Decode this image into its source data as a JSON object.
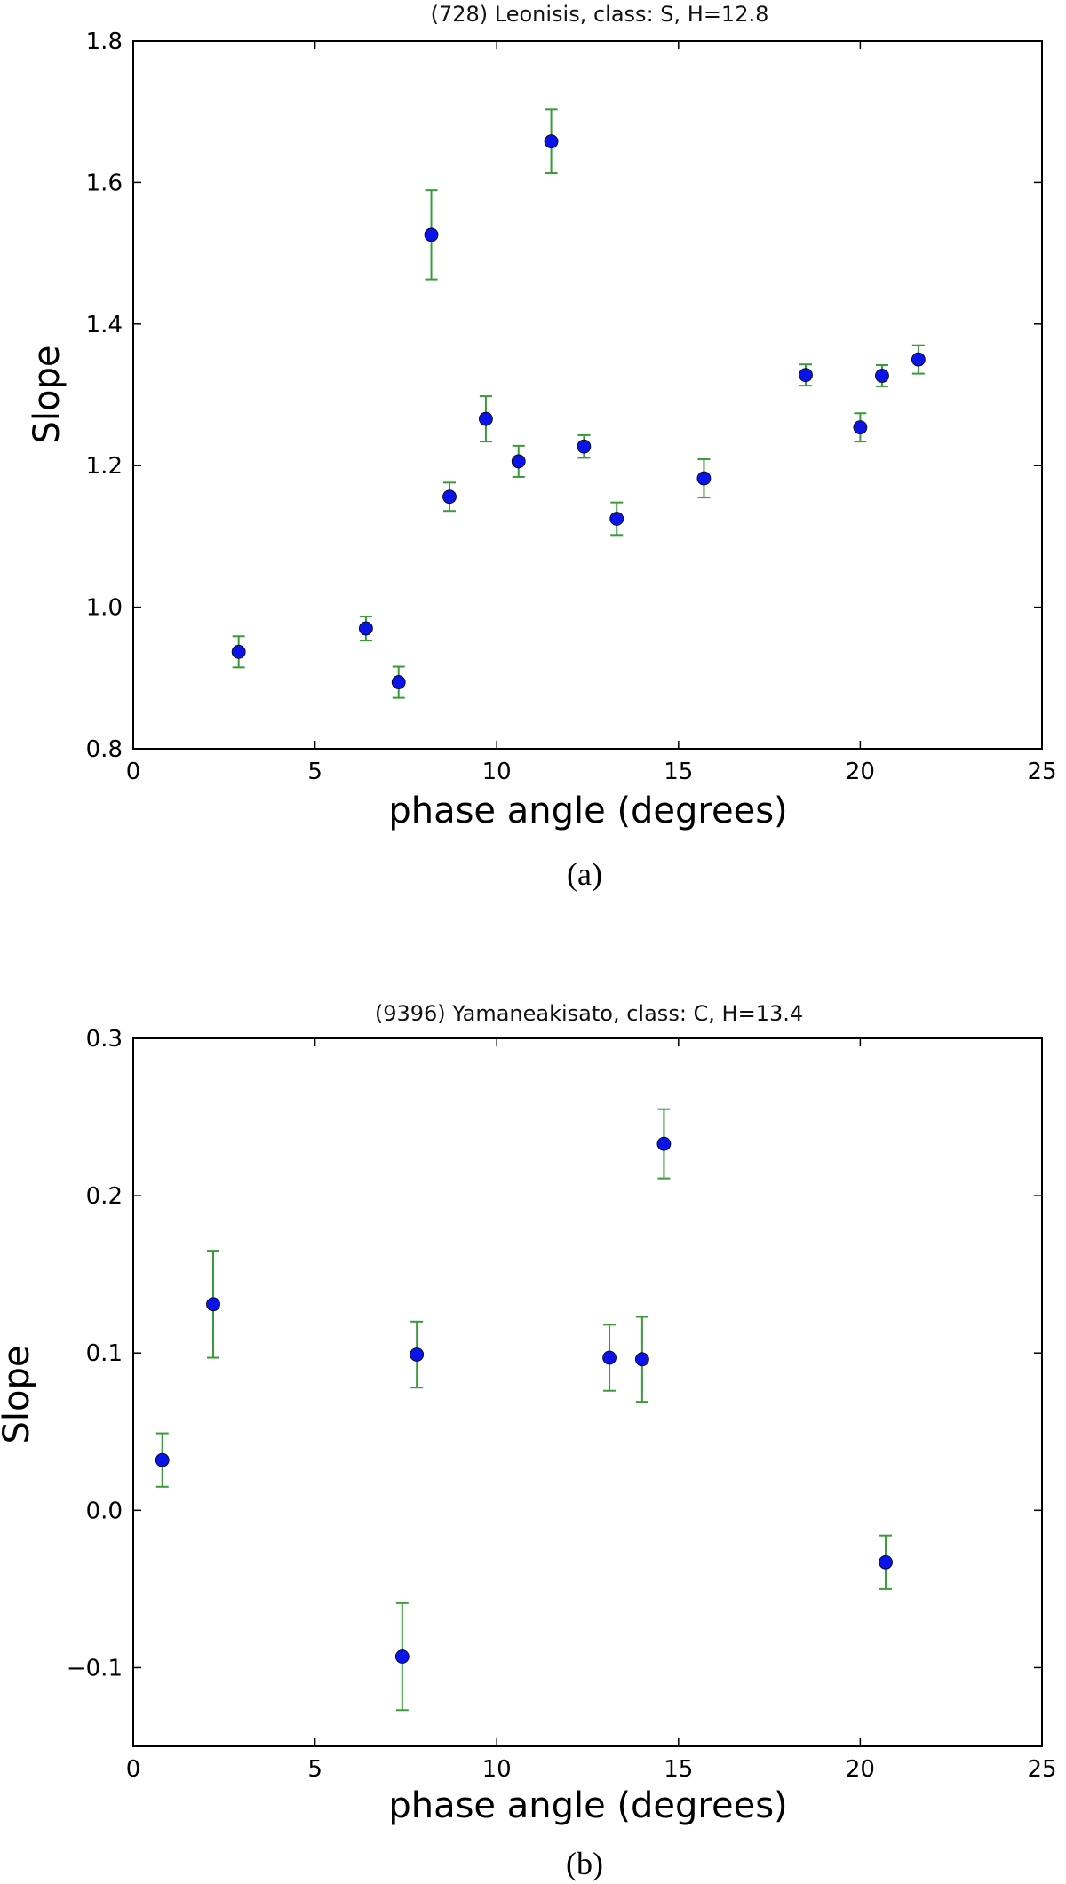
{
  "chart_data": [
    {
      "type": "scatter",
      "title": "(728) Leonisis, class: S,  H=12.8",
      "xlabel": "phase angle (degrees)",
      "ylabel": "Slope",
      "xlim": [
        0,
        25
      ],
      "ylim": [
        0.8,
        1.8
      ],
      "xticks": [
        "0",
        "5",
        "10",
        "15",
        "20",
        "25"
      ],
      "yticks": [
        "0.8",
        "1.0",
        "1.2",
        "1.4",
        "1.6",
        "1.8"
      ],
      "grid": false,
      "caption": "(a)",
      "marker_color": "#0a14e6",
      "errorbar_color": "#3a9a3a",
      "points": [
        {
          "x": 2.9,
          "y": 0.937,
          "err": 0.022
        },
        {
          "x": 6.4,
          "y": 0.97,
          "err": 0.017
        },
        {
          "x": 7.3,
          "y": 0.894,
          "err": 0.022
        },
        {
          "x": 8.2,
          "y": 1.526,
          "err": 0.063
        },
        {
          "x": 8.7,
          "y": 1.156,
          "err": 0.02
        },
        {
          "x": 9.7,
          "y": 1.266,
          "err": 0.032
        },
        {
          "x": 10.6,
          "y": 1.206,
          "err": 0.022
        },
        {
          "x": 11.5,
          "y": 1.658,
          "err": 0.045
        },
        {
          "x": 12.4,
          "y": 1.227,
          "err": 0.016
        },
        {
          "x": 13.3,
          "y": 1.125,
          "err": 0.023
        },
        {
          "x": 15.7,
          "y": 1.182,
          "err": 0.027
        },
        {
          "x": 18.5,
          "y": 1.328,
          "err": 0.015
        },
        {
          "x": 20.0,
          "y": 1.254,
          "err": 0.02
        },
        {
          "x": 20.6,
          "y": 1.327,
          "err": 0.015
        },
        {
          "x": 21.6,
          "y": 1.35,
          "err": 0.02
        }
      ]
    },
    {
      "type": "scatter",
      "title": "(9396)  Yamaneakisato, class: C, H=13.4",
      "xlabel": "phase angle (degrees)",
      "ylabel": "Slope",
      "xlim": [
        0,
        25
      ],
      "ylim": [
        -0.15,
        0.3
      ],
      "xticks": [
        "0",
        "5",
        "10",
        "15",
        "20",
        "25"
      ],
      "yticks": [
        "−0.1",
        "0.0",
        "0.1",
        "0.2",
        "0.3"
      ],
      "grid": false,
      "caption": "(b)",
      "marker_color": "#0a14e6",
      "errorbar_color": "#3a9a3a",
      "points": [
        {
          "x": 0.8,
          "y": 0.032,
          "err": 0.017
        },
        {
          "x": 2.2,
          "y": 0.131,
          "err": 0.034
        },
        {
          "x": 7.4,
          "y": -0.093,
          "err": 0.034
        },
        {
          "x": 7.8,
          "y": 0.099,
          "err": 0.021
        },
        {
          "x": 13.1,
          "y": 0.097,
          "err": 0.021
        },
        {
          "x": 14.0,
          "y": 0.096,
          "err": 0.027
        },
        {
          "x": 14.6,
          "y": 0.233,
          "err": 0.022
        },
        {
          "x": 20.7,
          "y": -0.033,
          "err": 0.017
        }
      ]
    }
  ]
}
